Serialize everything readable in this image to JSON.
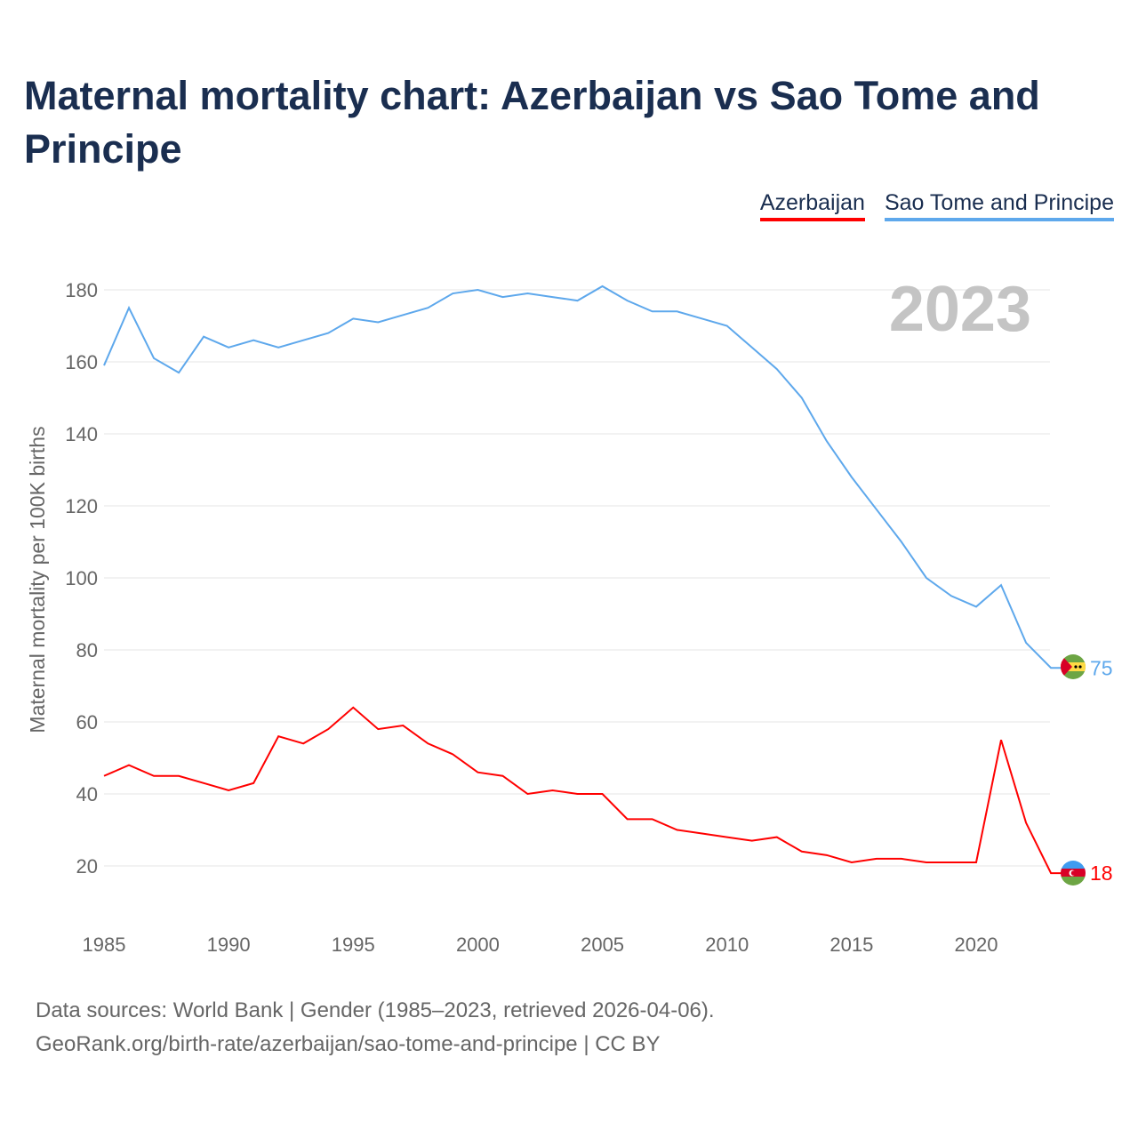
{
  "chart_data": {
    "type": "line",
    "title": "Maternal mortality chart: Azerbaijan vs Sao Tome and Principe",
    "ylabel": "Maternal mortality per 100K births",
    "xlabel": "",
    "xlim": [
      1985,
      2023
    ],
    "ylim": [
      10,
      190
    ],
    "x_ticks": [
      1985,
      1990,
      1995,
      2000,
      2005,
      2010,
      2015,
      2020
    ],
    "y_ticks": [
      20,
      40,
      60,
      80,
      100,
      120,
      140,
      160,
      180
    ],
    "grid": true,
    "legend_placement": "top-right",
    "year_label": "2023",
    "x": [
      1985,
      1986,
      1987,
      1988,
      1989,
      1990,
      1991,
      1992,
      1993,
      1994,
      1995,
      1996,
      1997,
      1998,
      1999,
      2000,
      2001,
      2002,
      2003,
      2004,
      2005,
      2006,
      2007,
      2008,
      2009,
      2010,
      2011,
      2012,
      2013,
      2014,
      2015,
      2016,
      2017,
      2018,
      2019,
      2020,
      2021,
      2022,
      2023
    ],
    "series": [
      {
        "name": "Azerbaijan",
        "color": "#ff0000",
        "end_label": "18",
        "values": [
          45,
          48,
          45,
          45,
          43,
          41,
          43,
          56,
          54,
          58,
          64,
          58,
          59,
          54,
          51,
          46,
          45,
          40,
          41,
          40,
          40,
          33,
          33,
          30,
          29,
          28,
          27,
          28,
          24,
          23,
          21,
          22,
          22,
          21,
          21,
          21,
          55,
          32,
          18
        ]
      },
      {
        "name": "Sao Tome and Principe",
        "color": "#5ea8ec",
        "end_label": "75",
        "values": [
          159,
          175,
          161,
          157,
          167,
          164,
          166,
          164,
          166,
          168,
          172,
          171,
          173,
          175,
          179,
          180,
          178,
          179,
          178,
          177,
          181,
          177,
          174,
          174,
          172,
          170,
          164,
          158,
          150,
          138,
          128,
          119,
          110,
          100,
          95,
          92,
          98,
          82,
          75
        ]
      }
    ]
  },
  "footer": {
    "line1": "Data sources: World Bank | Gender (1985–2023, retrieved 2026-04-06).",
    "line2": "GeoRank.org/birth-rate/azerbaijan/sao-tome-and-principe | CC BY"
  }
}
